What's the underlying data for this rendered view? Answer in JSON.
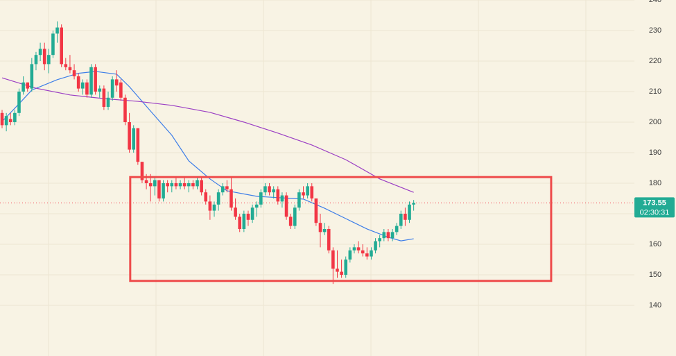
{
  "chart_data": {
    "type": "candlestick",
    "ylim": [
      123.4,
      240
    ],
    "yticks": [
      140,
      150,
      160,
      170,
      180,
      190,
      200,
      210,
      220,
      230,
      240
    ],
    "grid": true,
    "up_color": "#22ab94",
    "down_color": "#f23645",
    "open": [
      203,
      199,
      201,
      200,
      203,
      210,
      213,
      211,
      219,
      222,
      224,
      219,
      222,
      229,
      231,
      219,
      218,
      217,
      215,
      211,
      213,
      209,
      218,
      210,
      211,
      205,
      208,
      214,
      213,
      208,
      200,
      191,
      198,
      187,
      181,
      180,
      179,
      181,
      175,
      180,
      179,
      180,
      179,
      180,
      179,
      180,
      179,
      181,
      177,
      174,
      171,
      173,
      177,
      179,
      178,
      172,
      169,
      165,
      170,
      168,
      172,
      173,
      177,
      179,
      177,
      178,
      174,
      176,
      169,
      166,
      172,
      177,
      176,
      179,
      175,
      167,
      164,
      165,
      158,
      152,
      151,
      150,
      155,
      158,
      159,
      158,
      157,
      156,
      158,
      161,
      162,
      164,
      162,
      164,
      166,
      170,
      168,
      173
    ],
    "high": [
      204,
      203,
      203,
      204,
      211,
      215,
      213,
      221,
      223,
      226,
      226,
      224,
      230,
      233,
      232,
      221,
      222,
      219,
      216,
      214,
      214,
      219,
      219,
      212,
      212,
      210,
      215,
      217,
      214,
      209,
      203,
      199,
      198,
      187,
      183,
      183,
      182,
      181,
      181,
      181,
      181,
      182,
      181,
      182,
      181,
      181,
      182,
      182,
      178,
      176,
      174,
      178,
      180,
      181,
      182,
      175,
      170,
      171,
      171,
      173,
      174,
      178,
      180,
      180,
      179,
      179,
      177,
      177,
      170,
      173,
      178,
      179,
      180,
      180,
      175,
      170,
      167,
      166,
      159,
      158,
      155,
      156,
      159,
      160,
      161,
      160,
      159,
      159,
      162,
      163,
      165,
      165,
      165,
      167,
      171,
      172,
      174,
      174.5
    ],
    "low": [
      198,
      197,
      199,
      199,
      202,
      209,
      210,
      210,
      217,
      220,
      217,
      216,
      221,
      226,
      218,
      217,
      216,
      214,
      210,
      209,
      208,
      208,
      209,
      208,
      204,
      204,
      207,
      210,
      207,
      199,
      190,
      190,
      186,
      180,
      178,
      174,
      176,
      174,
      174,
      177,
      177,
      178,
      178,
      178,
      177,
      178,
      178,
      176,
      173,
      168,
      169,
      171,
      176,
      177,
      171,
      168,
      164,
      164,
      166,
      167,
      169,
      172,
      176,
      176,
      175,
      173,
      172,
      168,
      165,
      165,
      171,
      175,
      175,
      174,
      166,
      159,
      163,
      157,
      147,
      149,
      149,
      149,
      154,
      157,
      157,
      156,
      155,
      155,
      157,
      159,
      161,
      161,
      161,
      163,
      165,
      166,
      167,
      171
    ],
    "close": [
      199,
      202,
      200,
      203,
      210,
      213,
      211,
      219,
      222,
      224,
      219,
      222,
      229,
      231,
      219,
      218,
      217,
      215,
      211,
      213,
      209,
      218,
      210,
      211,
      205,
      208,
      214,
      212,
      208,
      200,
      191,
      198,
      187,
      181,
      180,
      179,
      181,
      175,
      180,
      179,
      180,
      179,
      180,
      179,
      180,
      179,
      181,
      177,
      174,
      171,
      173,
      177,
      179,
      178,
      172,
      169,
      165,
      170,
      168,
      172,
      173,
      177,
      179,
      177,
      178,
      174,
      176,
      169,
      166,
      172,
      177,
      176,
      179,
      175,
      167,
      164,
      165,
      158,
      152,
      151,
      150,
      155,
      158,
      159,
      158,
      157,
      156,
      158,
      161,
      162,
      164,
      162,
      164,
      166,
      170,
      168,
      173,
      173.55
    ],
    "lines": [
      {
        "color": "#3d7ee8",
        "x": [
          0,
          4,
          7,
          13,
          18,
          22,
          27,
          30,
          35,
          40,
          44,
          49,
          53,
          60,
          66,
          71,
          76,
          81,
          86,
          91,
          94,
          97
        ],
        "values": [
          200.2,
          206,
          210.5,
          213.9,
          216,
          216.6,
          215.7,
          211.6,
          203.6,
          195.7,
          187.3,
          181.4,
          177.5,
          175.7,
          175.2,
          174.8,
          171.8,
          168.4,
          165,
          162.3,
          161.1,
          161.8
        ]
      },
      {
        "color": "#9b3fc4",
        "x": [
          0,
          8,
          16,
          24,
          32,
          40,
          49,
          57,
          65,
          73,
          81,
          89,
          97
        ],
        "values": [
          214.5,
          211.1,
          208.9,
          207.7,
          206.8,
          205.5,
          203.2,
          200,
          196.4,
          192.5,
          187.7,
          181.4,
          177
        ]
      }
    ],
    "annotation_box": {
      "color": "#ee4b4b",
      "x": [
        30.2,
        129.4
      ],
      "y": [
        148,
        182
      ]
    },
    "last_price": 173.55,
    "countdown": "02:30:31"
  }
}
